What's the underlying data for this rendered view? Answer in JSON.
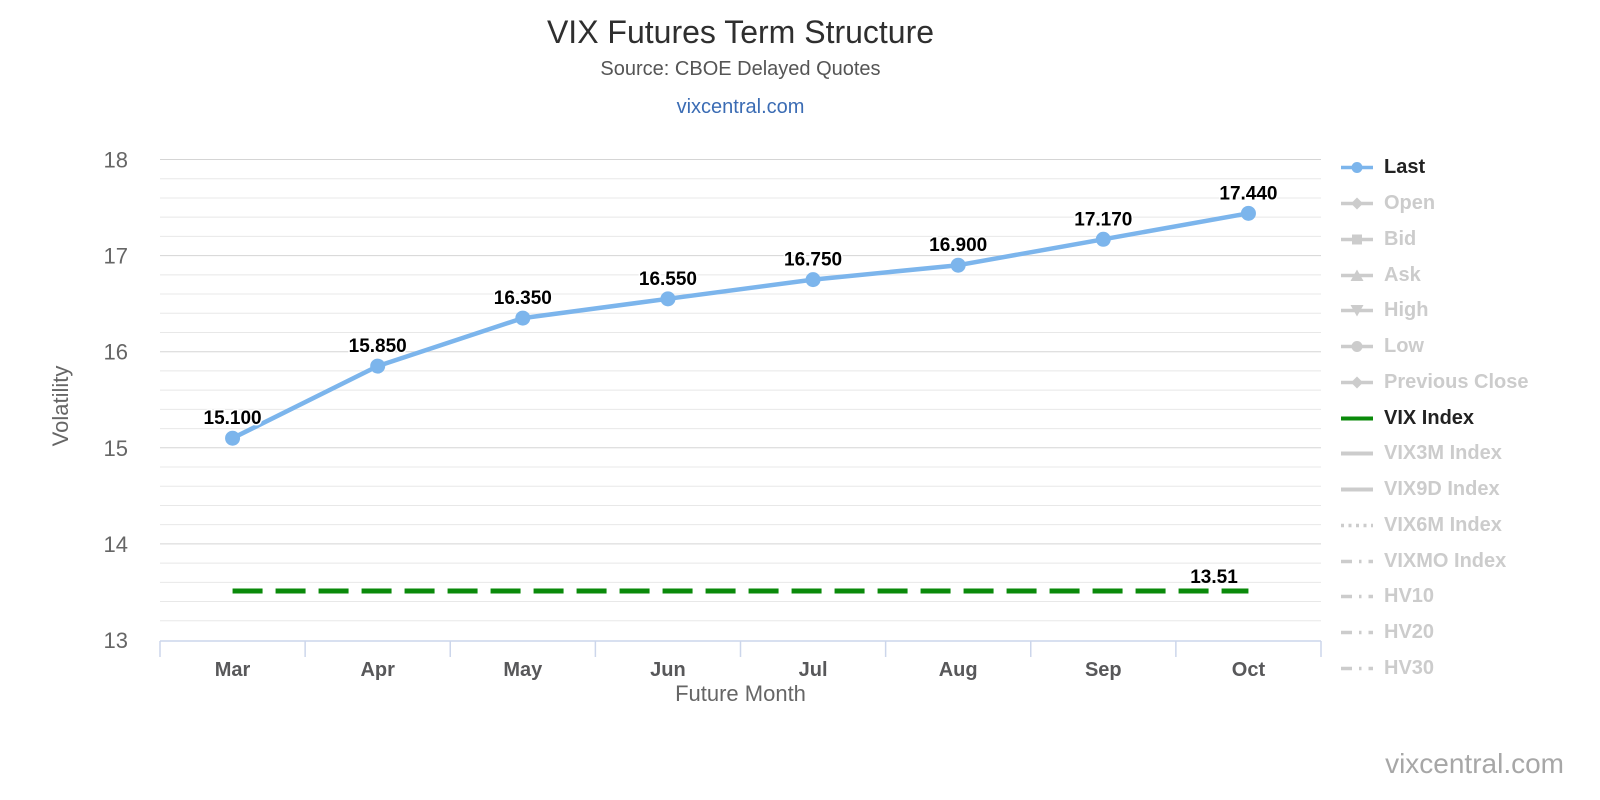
{
  "header": {
    "title": "VIX Futures Term Structure",
    "subtitle": "Source: CBOE Delayed Quotes",
    "link": "vixcentral.com"
  },
  "watermark": "vixcentral.com",
  "colors": {
    "series_blue": "#7cb5ec",
    "vix_green": "#0a8a0a",
    "inactive_gray": "#cccccc",
    "active_text": "#222222",
    "link_blue": "#3b6cb4",
    "axis_line": "#ccd6eb",
    "grid_major": "#d5d5d5",
    "grid_minor": "#e8e8e8",
    "tick_label": "#666666",
    "month_label": "#58585a",
    "data_label": "#000000"
  },
  "chart_data": {
    "type": "line",
    "title": "VIX Futures Term Structure",
    "subtitle": "Source: CBOE Delayed Quotes",
    "xlabel": "Future Month",
    "ylabel": "Volatility",
    "ylim": [
      13,
      18
    ],
    "y_major_ticks": [
      "13",
      "14",
      "15",
      "16",
      "17",
      "18"
    ],
    "y_minor_step": 0.2,
    "grid": true,
    "legend_position": "right",
    "categories": [
      "Mar",
      "Apr",
      "May",
      "Jun",
      "Jul",
      "Aug",
      "Sep",
      "Oct"
    ],
    "series": [
      {
        "name": "Last",
        "style": "solid-line-circle-markers",
        "values": [
          15.1,
          15.85,
          16.35,
          16.55,
          16.75,
          16.9,
          17.17,
          17.44
        ],
        "value_labels": [
          "15.100",
          "15.850",
          "16.350",
          "16.550",
          "16.750",
          "16.900",
          "17.170",
          "17.440"
        ]
      },
      {
        "name": "VIX Index",
        "style": "horizontal-dashed-line",
        "value": 13.51,
        "value_label": "13.51"
      }
    ]
  },
  "legend": {
    "items": [
      {
        "label": "Last",
        "symbol": "circle",
        "active": true
      },
      {
        "label": "Open",
        "symbol": "diamond",
        "active": false
      },
      {
        "label": "Bid",
        "symbol": "square",
        "active": false
      },
      {
        "label": "Ask",
        "symbol": "triangle-up",
        "active": false
      },
      {
        "label": "High",
        "symbol": "triangle-down",
        "active": false
      },
      {
        "label": "Low",
        "symbol": "circle",
        "active": false
      },
      {
        "label": "Previous Close",
        "symbol": "diamond",
        "active": false
      },
      {
        "label": "VIX Index",
        "symbol": "line",
        "active": true
      },
      {
        "label": "VIX3M Index",
        "symbol": "line",
        "active": false
      },
      {
        "label": "VIX9D Index",
        "symbol": "line",
        "active": false
      },
      {
        "label": "VIX6M Index",
        "symbol": "dotted",
        "active": false
      },
      {
        "label": "VIXMO Index",
        "symbol": "dashdot",
        "active": false
      },
      {
        "label": "HV10",
        "symbol": "dashdot",
        "active": false
      },
      {
        "label": "HV20",
        "symbol": "dashdot",
        "active": false
      },
      {
        "label": "HV30",
        "symbol": "dashdot",
        "active": false
      }
    ]
  }
}
